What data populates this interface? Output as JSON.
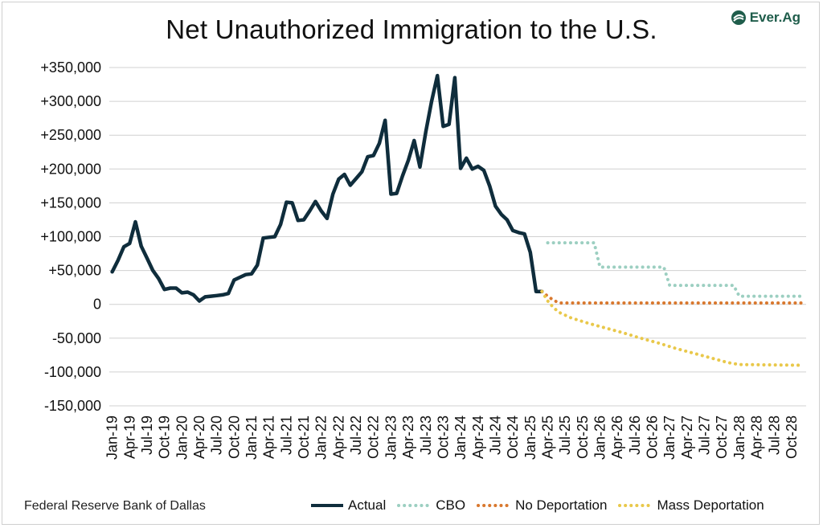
{
  "header": {
    "title": "Net Unauthorized Immigration to the U.S.",
    "logo_text": "Ever.Ag",
    "logo_icon": "leaf-circle-icon"
  },
  "footer": {
    "source": "Federal Reserve Bank of Dallas"
  },
  "colors": {
    "actual": "#0f2d3c",
    "cbo": "#9ccfc1",
    "no_deportation": "#d9782e",
    "mass_deportation": "#e9c84a",
    "grid": "#d0d0d0",
    "logo": "#1f5d4b"
  },
  "chart_data": {
    "type": "line",
    "title": "Net Unauthorized Immigration to the U.S.",
    "x_start": "2019-01",
    "x_end": "2028-12",
    "ylim": [
      -150000,
      350000
    ],
    "y_ticks": [
      350000,
      300000,
      250000,
      200000,
      150000,
      100000,
      50000,
      0,
      -50000,
      -100000,
      -150000
    ],
    "y_tick_labels": [
      "+350,000",
      "+300,000",
      "+250,000",
      "+200,000",
      "+150,000",
      "+100,000",
      "+50,000",
      "0",
      "-50,000",
      "-100,000",
      "-150,000"
    ],
    "x_tick_labels": [
      "Jan-19",
      "Apr-19",
      "Jul-19",
      "Oct-19",
      "Jan-20",
      "Apr-20",
      "Jul-20",
      "Oct-20",
      "Jan-21",
      "Apr-21",
      "Jul-21",
      "Oct-21",
      "Jan-22",
      "Apr-22",
      "Jul-22",
      "Oct-22",
      "Jan-23",
      "Apr-23",
      "Jul-23",
      "Oct-23",
      "Jan-24",
      "Apr-24",
      "Jul-24",
      "Oct-24",
      "Jan-25",
      "Apr-25",
      "Jul-25",
      "Oct-25",
      "Jan-26",
      "Apr-26",
      "Jul-26",
      "Oct-26",
      "Jan-27",
      "Apr-27",
      "Jul-27",
      "Oct-27",
      "Jan-28",
      "Apr-28",
      "Jul-28",
      "Oct-28"
    ],
    "grid": true,
    "legend_position": "bottom",
    "series": [
      {
        "name": "Actual",
        "style": "solid",
        "color_key": "actual",
        "points": [
          [
            "2019-01",
            48000
          ],
          [
            "2019-02",
            65000
          ],
          [
            "2019-03",
            85000
          ],
          [
            "2019-04",
            90000
          ],
          [
            "2019-05",
            122000
          ],
          [
            "2019-06",
            86000
          ],
          [
            "2019-07",
            68000
          ],
          [
            "2019-08",
            50000
          ],
          [
            "2019-09",
            38000
          ],
          [
            "2019-10",
            22000
          ],
          [
            "2019-11",
            24000
          ],
          [
            "2019-12",
            24000
          ],
          [
            "2020-01",
            17000
          ],
          [
            "2020-02",
            18000
          ],
          [
            "2020-03",
            14000
          ],
          [
            "2020-04",
            5000
          ],
          [
            "2020-05",
            11000
          ],
          [
            "2020-06",
            12000
          ],
          [
            "2020-07",
            13000
          ],
          [
            "2020-08",
            14000
          ],
          [
            "2020-09",
            16000
          ],
          [
            "2020-10",
            36000
          ],
          [
            "2020-11",
            40000
          ],
          [
            "2020-12",
            44000
          ],
          [
            "2021-01",
            45000
          ],
          [
            "2021-02",
            58000
          ],
          [
            "2021-03",
            98000
          ],
          [
            "2021-04",
            99000
          ],
          [
            "2021-05",
            100000
          ],
          [
            "2021-06",
            118000
          ],
          [
            "2021-07",
            151000
          ],
          [
            "2021-08",
            150000
          ],
          [
            "2021-09",
            124000
          ],
          [
            "2021-10",
            125000
          ],
          [
            "2021-11",
            138000
          ],
          [
            "2021-12",
            152000
          ],
          [
            "2022-01",
            138000
          ],
          [
            "2022-02",
            127000
          ],
          [
            "2022-03",
            163000
          ],
          [
            "2022-04",
            185000
          ],
          [
            "2022-05",
            192000
          ],
          [
            "2022-06",
            176000
          ],
          [
            "2022-07",
            186000
          ],
          [
            "2022-08",
            196000
          ],
          [
            "2022-09",
            218000
          ],
          [
            "2022-10",
            220000
          ],
          [
            "2022-11",
            238000
          ],
          [
            "2022-12",
            272000
          ],
          [
            "2023-01",
            163000
          ],
          [
            "2023-02",
            164000
          ],
          [
            "2023-03",
            190000
          ],
          [
            "2023-04",
            213000
          ],
          [
            "2023-05",
            242000
          ],
          [
            "2023-06",
            203000
          ],
          [
            "2023-07",
            255000
          ],
          [
            "2023-08",
            300000
          ],
          [
            "2023-09",
            338000
          ],
          [
            "2023-10",
            263000
          ],
          [
            "2023-11",
            266000
          ],
          [
            "2023-12",
            335000
          ],
          [
            "2024-01",
            201000
          ],
          [
            "2024-02",
            216000
          ],
          [
            "2024-03",
            200000
          ],
          [
            "2024-04",
            204000
          ],
          [
            "2024-05",
            198000
          ],
          [
            "2024-06",
            175000
          ],
          [
            "2024-07",
            145000
          ],
          [
            "2024-08",
            133000
          ],
          [
            "2024-09",
            125000
          ],
          [
            "2024-10",
            109000
          ],
          [
            "2024-11",
            106000
          ],
          [
            "2024-12",
            104000
          ],
          [
            "2025-01",
            77000
          ],
          [
            "2025-02",
            19000
          ],
          [
            "2025-03",
            19000
          ]
        ]
      },
      {
        "name": "CBO",
        "style": "dotted",
        "color_key": "cbo",
        "points": [
          [
            "2025-04",
            91000
          ],
          [
            "2025-12",
            91000
          ],
          [
            "2026-01",
            55000
          ],
          [
            "2026-12",
            55000
          ],
          [
            "2027-01",
            28000
          ],
          [
            "2027-12",
            28000
          ],
          [
            "2028-01",
            12000
          ],
          [
            "2028-12",
            12000
          ]
        ]
      },
      {
        "name": "No Deportation",
        "style": "dotted",
        "color_key": "no_deportation",
        "points": [
          [
            "2025-03",
            19000
          ],
          [
            "2025-04",
            12000
          ],
          [
            "2025-05",
            6000
          ],
          [
            "2025-06",
            2000
          ],
          [
            "2028-12",
            2000
          ]
        ]
      },
      {
        "name": "Mass Deportation",
        "style": "dotted",
        "color_key": "mass_deportation",
        "points": [
          [
            "2025-03",
            19000
          ],
          [
            "2025-04",
            5000
          ],
          [
            "2025-05",
            -5000
          ],
          [
            "2025-06",
            -12000
          ],
          [
            "2025-08",
            -20000
          ],
          [
            "2025-11",
            -28000
          ],
          [
            "2026-02",
            -35000
          ],
          [
            "2026-05",
            -42000
          ],
          [
            "2026-08",
            -50000
          ],
          [
            "2026-11",
            -57000
          ],
          [
            "2027-02",
            -65000
          ],
          [
            "2027-05",
            -72000
          ],
          [
            "2027-08",
            -79000
          ],
          [
            "2027-11",
            -86000
          ],
          [
            "2028-01",
            -89000
          ],
          [
            "2028-12",
            -90000
          ]
        ]
      }
    ]
  }
}
